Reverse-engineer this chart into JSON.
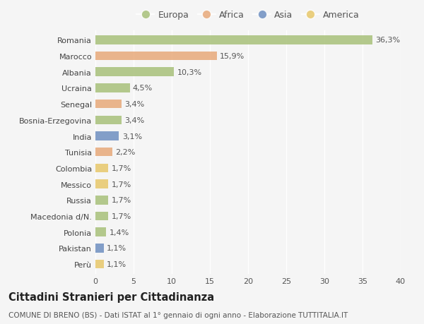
{
  "countries": [
    "Romania",
    "Marocco",
    "Albania",
    "Ucraina",
    "Senegal",
    "Bosnia-Erzegovina",
    "India",
    "Tunisia",
    "Colombia",
    "Messico",
    "Russia",
    "Macedonia d/N.",
    "Polonia",
    "Pakistan",
    "Perù"
  ],
  "values": [
    36.3,
    15.9,
    10.3,
    4.5,
    3.4,
    3.4,
    3.1,
    2.2,
    1.7,
    1.7,
    1.7,
    1.7,
    1.4,
    1.1,
    1.1
  ],
  "labels": [
    "36,3%",
    "15,9%",
    "10,3%",
    "4,5%",
    "3,4%",
    "3,4%",
    "3,1%",
    "2,2%",
    "1,7%",
    "1,7%",
    "1,7%",
    "1,7%",
    "1,4%",
    "1,1%",
    "1,1%"
  ],
  "continents": [
    "Europa",
    "Africa",
    "Europa",
    "Europa",
    "Africa",
    "Europa",
    "Asia",
    "Africa",
    "America",
    "America",
    "Europa",
    "Europa",
    "Europa",
    "Asia",
    "America"
  ],
  "continent_colors": {
    "Europa": "#a8c07a",
    "Africa": "#e8a97a",
    "Asia": "#6e8fc0",
    "America": "#e8c86a"
  },
  "legend_order": [
    "Europa",
    "Africa",
    "Asia",
    "America"
  ],
  "background_color": "#f5f5f5",
  "plot_bg_color": "#f5f5f5",
  "grid_color": "#ffffff",
  "title": "Cittadini Stranieri per Cittadinanza",
  "subtitle": "COMUNE DI BRENO (BS) - Dati ISTAT al 1° gennaio di ogni anno - Elaborazione TUTTITALIA.IT",
  "xlim": [
    0,
    40
  ],
  "xticks": [
    0,
    5,
    10,
    15,
    20,
    25,
    30,
    35,
    40
  ],
  "bar_height": 0.55,
  "label_fontsize": 8,
  "tick_fontsize": 8,
  "title_fontsize": 10.5,
  "subtitle_fontsize": 7.5
}
